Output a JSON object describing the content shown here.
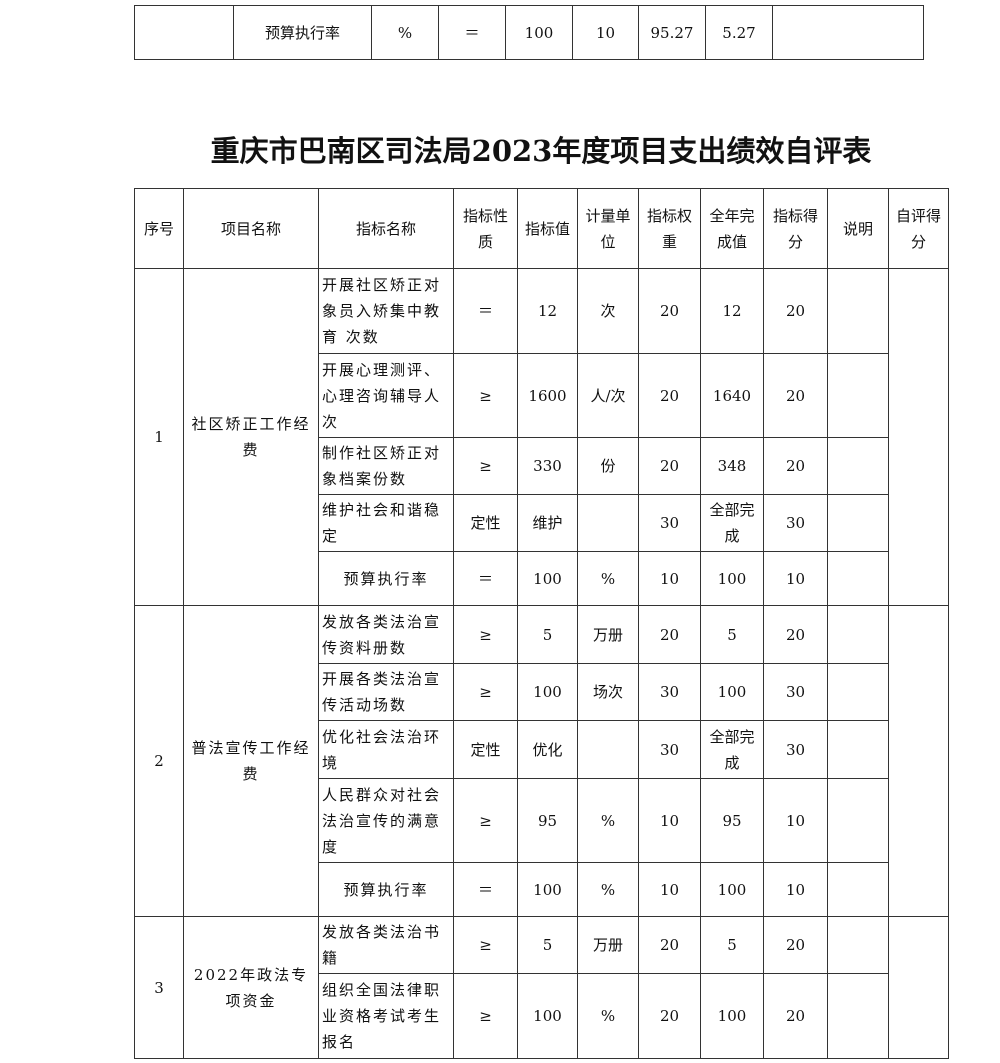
{
  "top_row": {
    "seq": "",
    "project": "",
    "indicator": "预算执行率",
    "unit": "%",
    "nature": "＝",
    "target": "100",
    "weight": "10",
    "actual": "95.27",
    "score": "5.27",
    "note": ""
  },
  "title": "重庆市巴南区司法局2023年度项目支出绩效自评表",
  "headers": [
    "序号",
    "项目名称",
    "指标名称",
    "指标性质",
    "指标值",
    "计量单位",
    "指标权重",
    "全年完成值",
    "指标得分",
    "说明",
    "自评得分"
  ],
  "groups": [
    {
      "seq": "1",
      "project": "社区矫正工作经费",
      "rows": [
        {
          "indicator": "开展社区矫正对象员入矫集中教育 次数",
          "nature": "＝",
          "value": "12",
          "unit": "次",
          "weight": "20",
          "actual": "12",
          "score": "20"
        },
        {
          "indicator": "开展心理测评、心理咨询辅导人次",
          "nature": "≥",
          "value": "1600",
          "unit": "人/次",
          "weight": "20",
          "actual": "1640",
          "score": "20"
        },
        {
          "indicator": "制作社区矫正对象档案份数",
          "nature": "≥",
          "value": "330",
          "unit": "份",
          "weight": "20",
          "actual": "348",
          "score": "20"
        },
        {
          "indicator": "维护社会和谐稳定",
          "nature": "定性",
          "value": "维护",
          "unit": "",
          "weight": "30",
          "actual": "全部完成",
          "score": "30"
        },
        {
          "indicator": "预算执行率",
          "nature": "＝",
          "value": "100",
          "unit": "%",
          "weight": "10",
          "actual": "100",
          "score": "10"
        }
      ]
    },
    {
      "seq": "2",
      "project": "普法宣传工作经费",
      "rows": [
        {
          "indicator": "发放各类法治宣传资料册数",
          "nature": "≥",
          "value": "5",
          "unit": "万册",
          "weight": "20",
          "actual": "5",
          "score": "20"
        },
        {
          "indicator": "开展各类法治宣传活动场数",
          "nature": "≥",
          "value": "100",
          "unit": "场次",
          "weight": "30",
          "actual": "100",
          "score": "30"
        },
        {
          "indicator": "优化社会法治环境",
          "nature": "定性",
          "value": "优化",
          "unit": "",
          "weight": "30",
          "actual": "全部完成",
          "score": "30"
        },
        {
          "indicator": "人民群众对社会法治宣传的满意度",
          "nature": "≥",
          "value": "95",
          "unit": "%",
          "weight": "10",
          "actual": "95",
          "score": "10"
        },
        {
          "indicator": "预算执行率",
          "nature": "＝",
          "value": "100",
          "unit": "%",
          "weight": "10",
          "actual": "100",
          "score": "10"
        }
      ]
    },
    {
      "seq": "3",
      "project": "2022年政法专项资金",
      "rows": [
        {
          "indicator": "发放各类法治书籍",
          "nature": "≥",
          "value": "5",
          "unit": "万册",
          "weight": "20",
          "actual": "5",
          "score": "20"
        },
        {
          "indicator": "组织全国法律职业资格考试考生报名",
          "nature": "≥",
          "value": "100",
          "unit": "%",
          "weight": "20",
          "actual": "100",
          "score": "20"
        }
      ]
    }
  ]
}
